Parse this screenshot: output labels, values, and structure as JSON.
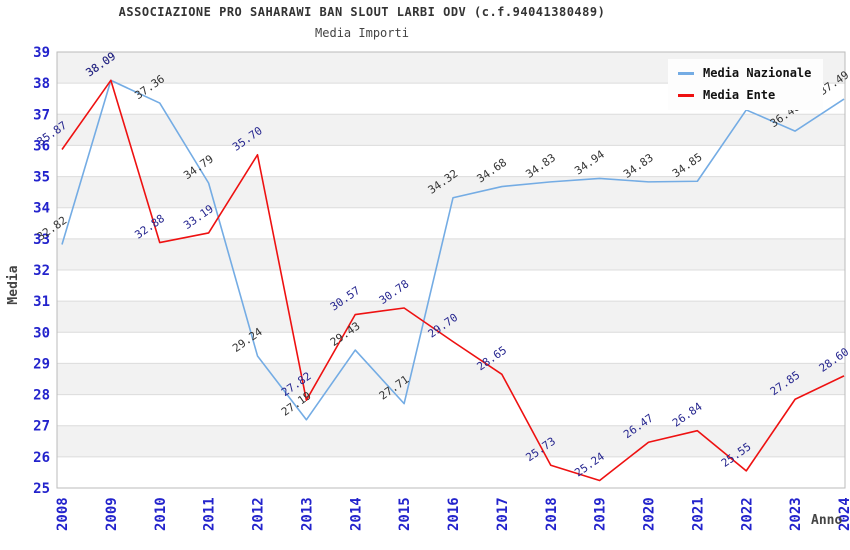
{
  "chart_data": {
    "type": "line",
    "title": "ASSOCIAZIONE PRO SAHARAWI BAN SLOUT LARBI ODV (c.f.94041380489)",
    "subtitle": "Media Importi",
    "xlabel": "Anno",
    "ylabel": "Media",
    "x": [
      "2008",
      "2009",
      "2010",
      "2011",
      "2012",
      "2013",
      "2014",
      "2015",
      "2016",
      "2017",
      "2018",
      "2019",
      "2020",
      "2021",
      "2022",
      "2023",
      "2024"
    ],
    "ylim": [
      25,
      39
    ],
    "ytick_step": 1,
    "grid": {
      "horizontal_gridlines": true,
      "alternating_bands": true,
      "vertical_gridlines": false
    },
    "legend": {
      "position": "top-right"
    },
    "series": [
      {
        "name": "Media Nazionale",
        "color": "#74ACE4",
        "label_color": "#333333",
        "values": [
          32.82,
          38.09,
          37.36,
          34.79,
          29.24,
          27.19,
          29.43,
          27.71,
          34.32,
          34.68,
          34.83,
          34.94,
          34.83,
          34.85,
          37.14,
          36.46,
          37.49
        ],
        "labels_hidden_by_legend": [
          "2022"
        ]
      },
      {
        "name": "Media Ente",
        "color": "#EE1111",
        "label_color": "#26268F",
        "values": [
          35.87,
          38.09,
          32.88,
          33.19,
          35.7,
          27.82,
          30.57,
          30.78,
          29.7,
          28.65,
          25.73,
          25.24,
          26.47,
          26.84,
          25.55,
          27.85,
          28.6
        ],
        "labels_hidden_by_legend": []
      }
    ],
    "colors": {
      "tick_labels": "#2323CC",
      "band_gray": "#F2F2F2",
      "gridline": "#DCDCDC",
      "plot_border": "#BBBBBB",
      "title_text": "#333333",
      "axis_title_text": "#444444",
      "legend_background": "#FDFDFD"
    }
  }
}
